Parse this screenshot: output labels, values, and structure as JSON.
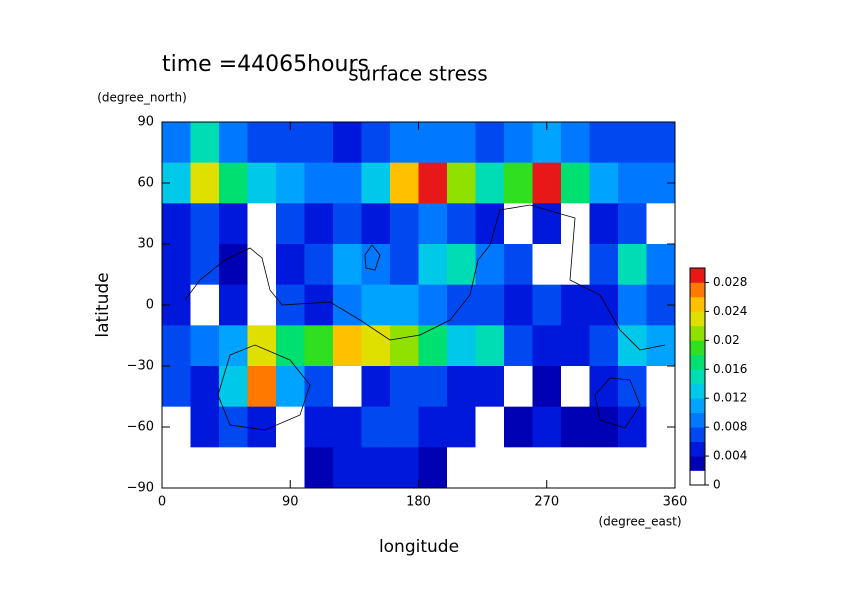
{
  "chart_data": {
    "type": "contour",
    "title": "surface stress",
    "subtitle": "time =44065hours",
    "y_label": "latitude",
    "y_unit": "(degree_north)",
    "x_label": "longitude",
    "x_unit": "(degree_east)",
    "xlim": [
      0,
      360
    ],
    "ylim": [
      -90,
      90
    ],
    "xticks": [
      0,
      90,
      180,
      270,
      360
    ],
    "yticks": [
      {
        "value": 90,
        "label": "90"
      },
      {
        "value": 60,
        "label": "60"
      },
      {
        "value": 30,
        "label": "30"
      },
      {
        "value": 0,
        "label": "0"
      },
      {
        "value": -30,
        "label": "−30"
      },
      {
        "value": -60,
        "label": "−60"
      },
      {
        "value": -90,
        "label": "−90"
      }
    ],
    "x": [
      10,
      30,
      50,
      70,
      90,
      110,
      130,
      150,
      170,
      190,
      210,
      230,
      250,
      270,
      290,
      310,
      330,
      350
    ],
    "y": [
      80,
      60,
      40,
      20,
      0,
      -20,
      -40,
      -60,
      -80
    ],
    "z": [
      [
        0.008,
        0.014,
        0.008,
        0.006,
        0.006,
        0.006,
        0.004,
        0.006,
        0.008,
        0.008,
        0.008,
        0.006,
        0.008,
        0.01,
        0.008,
        0.006,
        0.006,
        0.006
      ],
      [
        0.012,
        0.022,
        0.016,
        0.012,
        0.01,
        0.008,
        0.008,
        0.012,
        0.024,
        0.03,
        0.02,
        0.014,
        0.018,
        0.03,
        0.016,
        0.01,
        0.008,
        0.008
      ],
      [
        0.004,
        0.006,
        0.004,
        0,
        0.006,
        0.004,
        0.006,
        0.004,
        0.006,
        0.008,
        0.006,
        0.004,
        0,
        0.004,
        0,
        0.004,
        0.006,
        0
      ],
      [
        0.004,
        0.006,
        0.002,
        0,
        0.004,
        0.006,
        0.01,
        0.008,
        0.006,
        0.012,
        0.014,
        0.008,
        0.006,
        0,
        0,
        0.006,
        0.014,
        0.008
      ],
      [
        0.004,
        0,
        0.004,
        0,
        0.006,
        0.004,
        0.008,
        0.01,
        0.01,
        0.008,
        0.006,
        0.006,
        0.004,
        0.006,
        0.004,
        0.004,
        0.008,
        0.006
      ],
      [
        0.006,
        0.008,
        0.01,
        0.022,
        0.016,
        0.018,
        0.024,
        0.022,
        0.02,
        0.016,
        0.012,
        0.014,
        0.006,
        0.004,
        0.004,
        0.006,
        0.012,
        0.01
      ],
      [
        0.006,
        0.004,
        0.012,
        0.026,
        0.01,
        0.006,
        0,
        0.004,
        0.006,
        0.006,
        0.004,
        0.004,
        0,
        0.002,
        0,
        0.004,
        0.006,
        0
      ],
      [
        0,
        0.004,
        0.006,
        0.004,
        0,
        0.004,
        0.004,
        0.006,
        0.006,
        0.004,
        0.004,
        0,
        0.002,
        0.004,
        0.002,
        0.002,
        0.004,
        0
      ],
      [
        0,
        0,
        0,
        0,
        0,
        0.002,
        0.004,
        0.004,
        0.004,
        0.002,
        0,
        0,
        0,
        0,
        0,
        0,
        0,
        0
      ]
    ],
    "clim": [
      0,
      0.03
    ],
    "cticks": [
      0,
      0.004,
      0.008,
      0.012,
      0.016,
      0.02,
      0.024,
      0.028
    ],
    "colors": [
      "#ffffff",
      "#0000b4",
      "#0018dc",
      "#0048f0",
      "#0078ff",
      "#00a4ff",
      "#00c8e8",
      "#00dcb4",
      "#00e070",
      "#30e020",
      "#90e000",
      "#e0e000",
      "#ffc000",
      "#ff7800",
      "#e81818"
    ]
  }
}
